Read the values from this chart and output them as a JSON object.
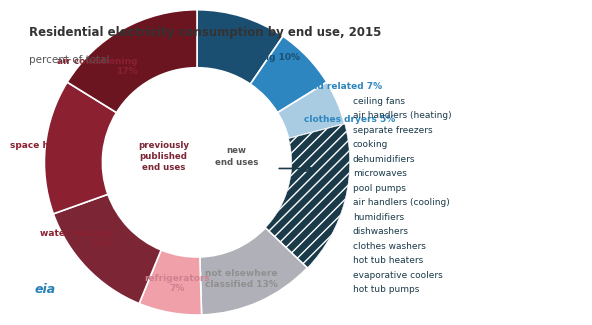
{
  "title": "Residential electricity consumption by end use, 2015",
  "subtitle": "percent of total",
  "sizes": [
    10,
    7,
    5,
    17,
    13,
    7,
    14,
    15,
    17
  ],
  "colors": [
    "#1b4f72",
    "#2e86c1",
    "#a9cce3",
    "#1a3a4a",
    "#b0b0b8",
    "#f0a0a8",
    "#7b2535",
    "#8b2030",
    "#6b1520"
  ],
  "hatch_color": "#1a3a4a",
  "center_label1": "previously\npublished\nend uses",
  "center_label2": "new\nend uses",
  "label_lighting": "lighting 10%",
  "label_tvs": "TVs and related 7%",
  "label_dryers": "clothes dryers 5%",
  "label_not_elsewhere": "not elsewhere\nclassified 13%",
  "label_refrigerators": "refrigerators\n7%",
  "label_water": "water heating\n14%",
  "label_space": "space heating\n15%",
  "label_ac": "air conditioning\n17%",
  "color_lighting": "#1b4f72",
  "color_tvs": "#2e86c1",
  "color_dryers": "#2e86c1",
  "color_not_elsewhere": "#909090",
  "color_refrigerators": "#d08090",
  "color_red_labels": "#8b2030",
  "new_end_uses_items": [
    "ceiling fans",
    "air handlers (heating)",
    "separate freezers",
    "cooking",
    "dehumidifiers",
    "microwaves",
    "pool pumps",
    "air handlers (cooling)",
    "humidifiers",
    "dishwashers",
    "clothes washers",
    "hot tub heaters",
    "evaporative coolers",
    "hot tub pumps"
  ],
  "new_end_uses_color": "#1a3a4a",
  "background_color": "#ffffff"
}
